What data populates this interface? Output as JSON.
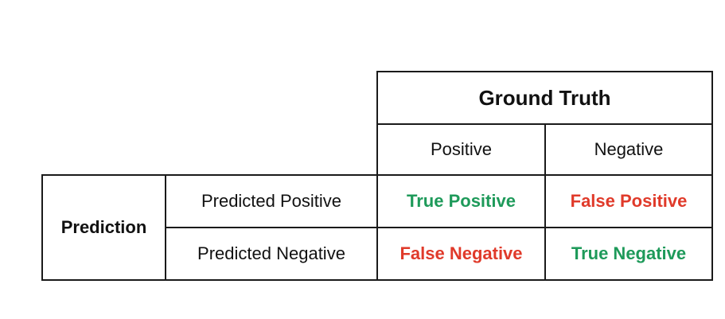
{
  "ground_truth": {
    "title": "Ground Truth",
    "columns": [
      "Positive",
      "Negative"
    ]
  },
  "prediction": {
    "title": "Prediction",
    "rows": [
      "Predicted Positive",
      "Predicted Negative"
    ]
  },
  "matrix": [
    [
      {
        "label": "True Positive",
        "color": "#1e9a5a"
      },
      {
        "label": "False Positive",
        "color": "#e03a2a"
      }
    ],
    [
      {
        "label": "False Negative",
        "color": "#e03a2a"
      },
      {
        "label": "True Negative",
        "color": "#1e9a5a"
      }
    ]
  ],
  "colors": {
    "line": "#1a1a1a",
    "correct": "#1e9a5a",
    "incorrect": "#e03a2a"
  }
}
